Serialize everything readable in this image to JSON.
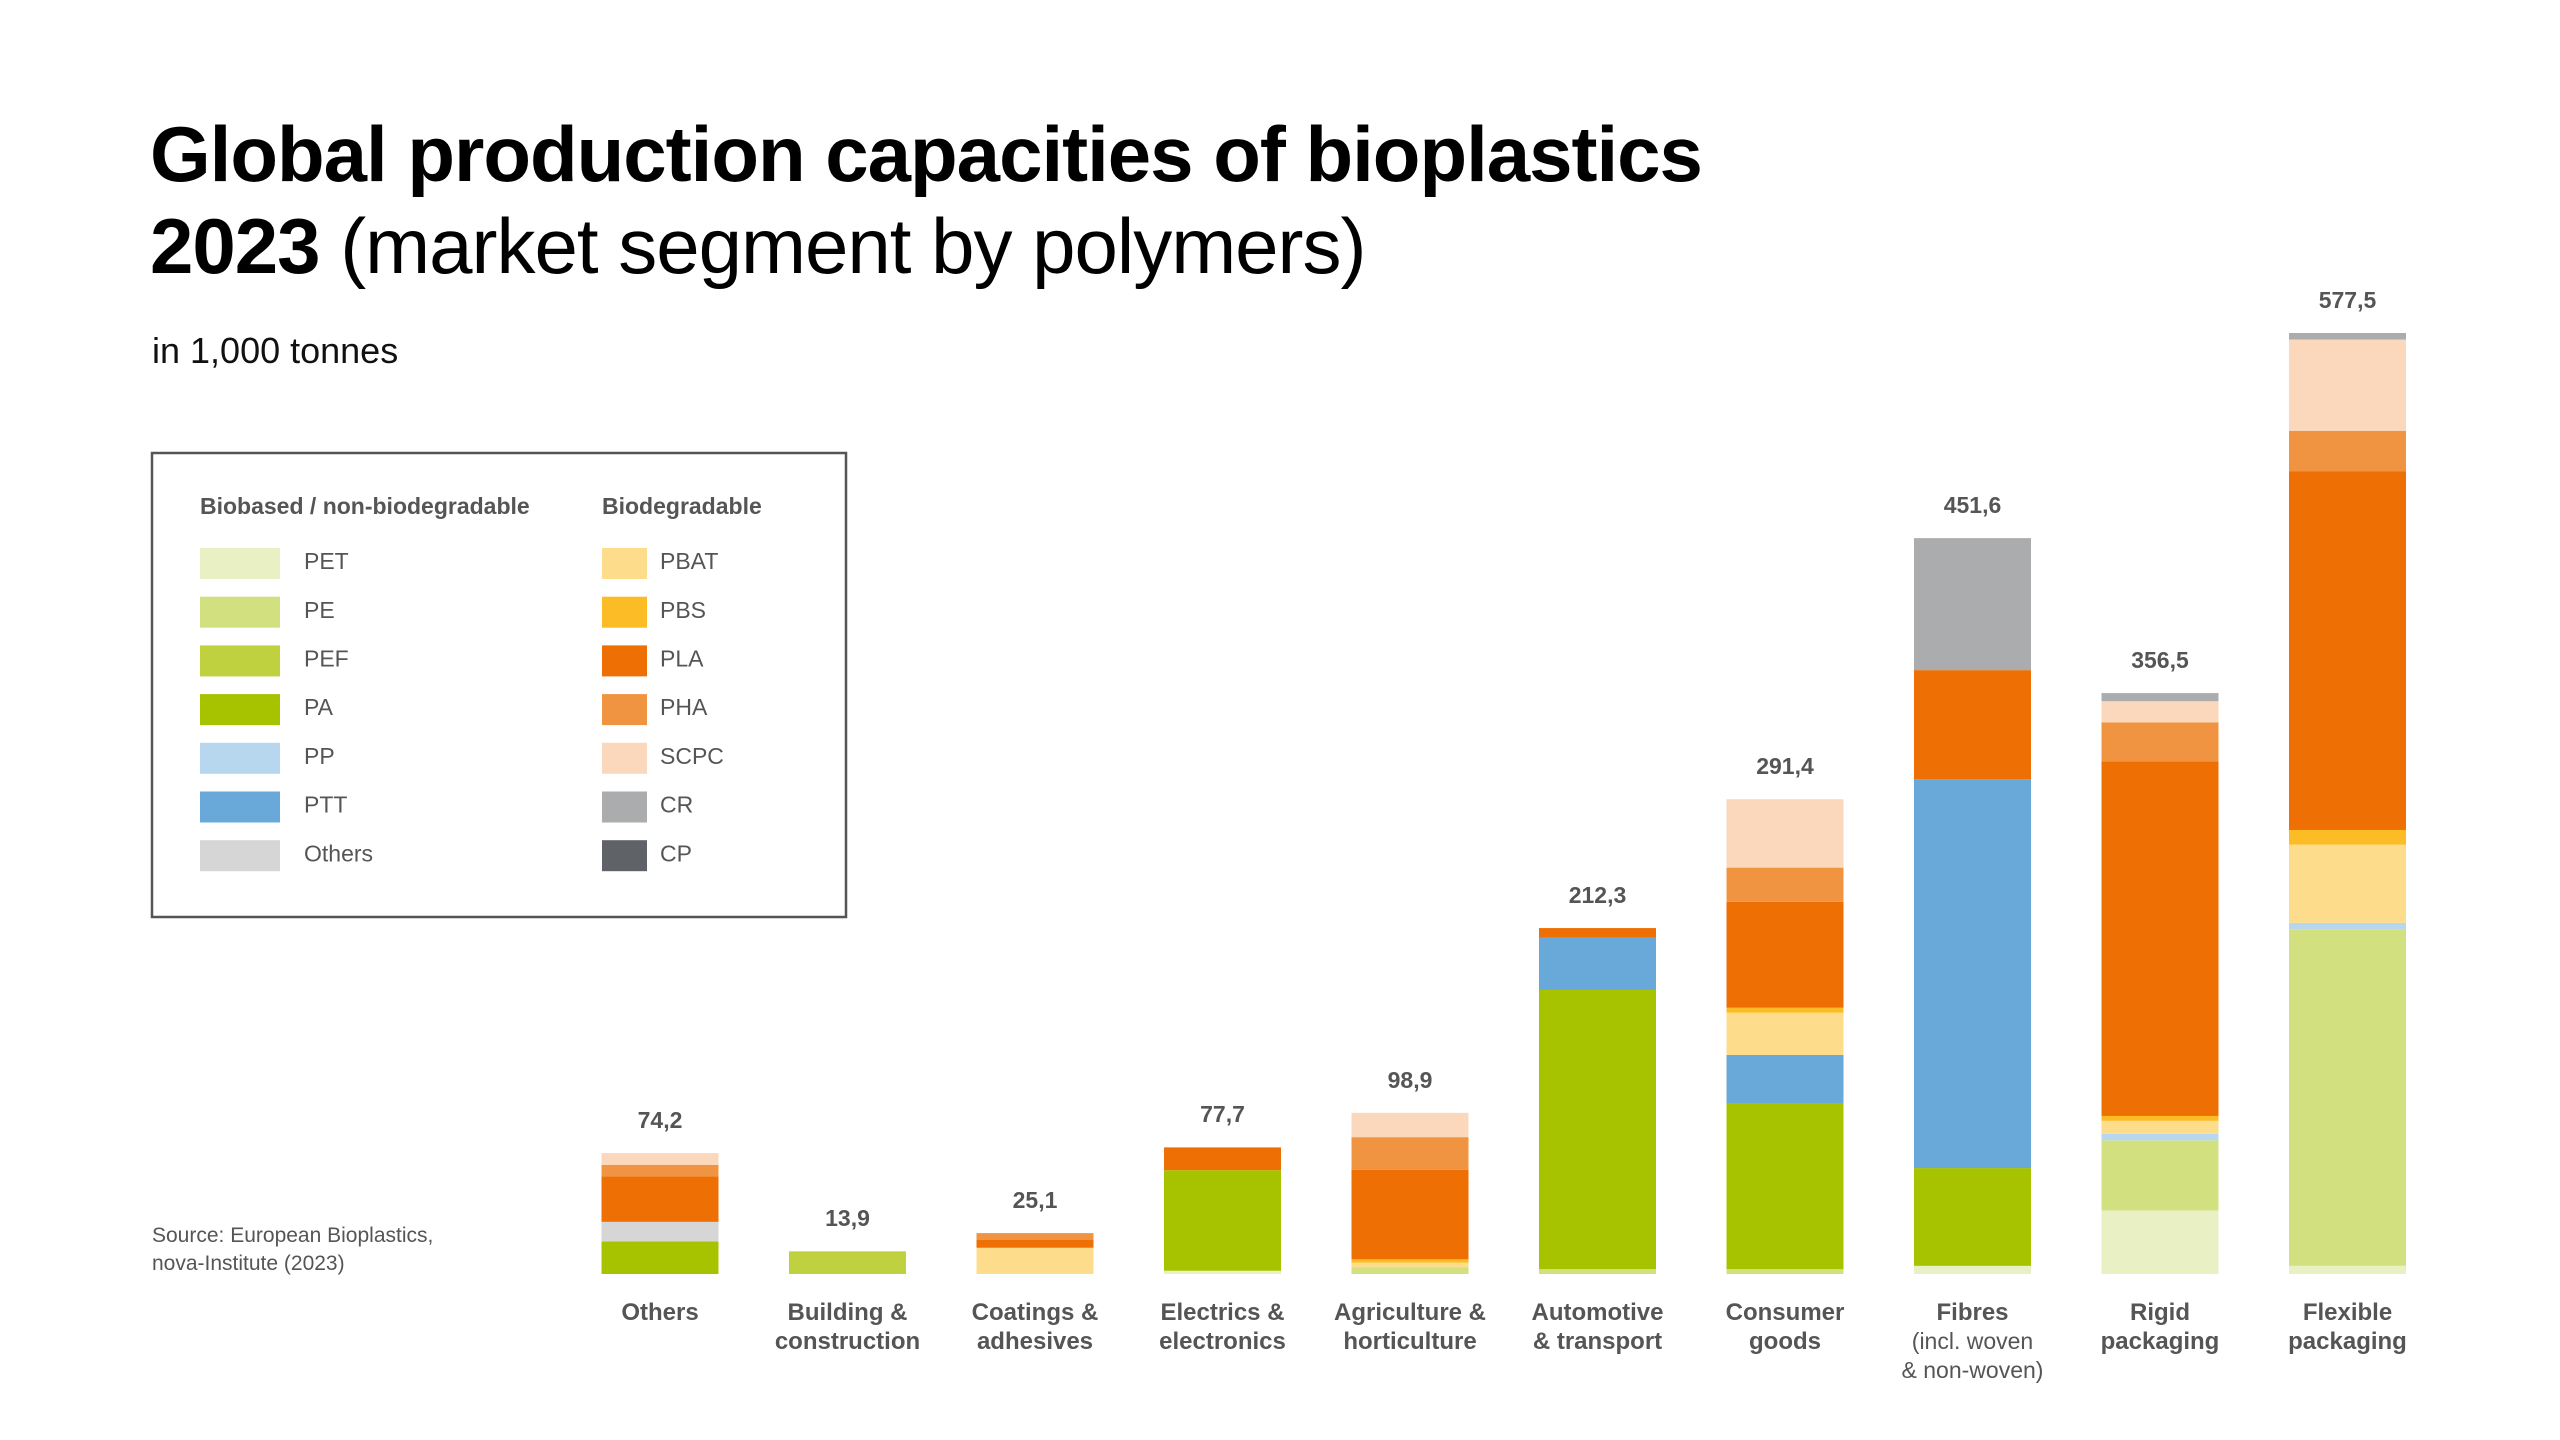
{
  "chart_data": {
    "type": "stacked_bar",
    "title": "Global production capacities of bioplastics\n2023",
    "subtitle": "(market segment by polymers)",
    "unit": "in 1,000 tonnes",
    "source": "Source: European Bioplastics,\nnova-Institute (2023)",
    "categories": [
      "Others",
      "Building &\nconstruction",
      "Coatings &\nadhesives",
      "Electrics &\nelectronics",
      "Agriculture &\nhorticulture",
      "Automotive\n& transport",
      "Consumer\ngoods",
      "Fibres",
      "Rigid\npackaging",
      "Flexible\npackaging"
    ],
    "fibres_note": "(incl. woven\n& non-woven)",
    "legend_groups": [
      "Biobased / non-biodegradable",
      "Biodegradable"
    ],
    "series": [
      {
        "name": "PET",
        "group": 0,
        "color": "#e8f0c4",
        "values": [
          0,
          0,
          0,
          2,
          0,
          0,
          0,
          5,
          39,
          5
        ]
      },
      {
        "name": "PE",
        "group": 0,
        "color": "#d3e07f",
        "values": [
          0,
          0,
          0,
          0,
          4,
          3,
          3,
          0,
          43,
          206.5
        ]
      },
      {
        "name": "PEF",
        "group": 0,
        "color": "#bfd13f",
        "values": [
          0,
          13.9,
          0,
          0,
          0,
          0,
          0,
          0,
          0,
          0
        ]
      },
      {
        "name": "PA",
        "group": 0,
        "color": "#a7c300",
        "values": [
          20,
          0,
          0,
          61.7,
          0,
          171.3,
          101.4,
          60,
          0,
          0
        ]
      },
      {
        "name": "PP",
        "group": 0,
        "color": "#b7d7ee",
        "values": [
          0,
          0,
          0,
          0,
          0,
          0,
          0,
          0,
          4,
          4
        ]
      },
      {
        "name": "PTT",
        "group": 0,
        "color": "#69a9da",
        "values": [
          0,
          0,
          0,
          0,
          0,
          32,
          30,
          238.6,
          0,
          0
        ]
      },
      {
        "name": "Others",
        "group": 0,
        "color": "#d6d6d6",
        "values": [
          12,
          0,
          0,
          0,
          0,
          0,
          0,
          0,
          0,
          0
        ]
      },
      {
        "name": "PBAT",
        "group": 1,
        "color": "#fddd8c",
        "values": [
          0,
          0,
          16.1,
          0,
          3,
          0,
          26,
          0,
          8,
          48
        ]
      },
      {
        "name": "PBS",
        "group": 1,
        "color": "#fcbc26",
        "values": [
          0,
          0,
          0,
          0,
          2,
          0,
          3,
          0,
          3,
          9
        ]
      },
      {
        "name": "PLA",
        "group": 1,
        "color": "#ee6f04",
        "values": [
          28,
          0,
          5,
          14,
          55,
          6,
          65,
          67,
          217.5,
          220
        ]
      },
      {
        "name": "PHA",
        "group": 1,
        "color": "#f19441",
        "values": [
          7,
          0,
          4,
          0,
          20,
          0,
          21,
          0,
          24,
          25
        ]
      },
      {
        "name": "SCPC",
        "group": 1,
        "color": "#fbd8bc",
        "values": [
          7.2,
          0,
          0,
          0,
          14.9,
          0,
          42,
          0,
          13,
          56
        ]
      },
      {
        "name": "CR",
        "group": 1,
        "color": "#aaacad",
        "values": [
          0,
          0,
          0,
          0,
          0,
          0,
          0,
          81,
          5,
          4
        ]
      },
      {
        "name": "CP",
        "group": 1,
        "color": "#5f6266",
        "values": [
          0,
          0,
          0,
          0,
          0,
          0,
          0,
          0,
          0,
          0
        ]
      }
    ],
    "totals": {
      "values": [
        74.2,
        13.9,
        25.1,
        77.7,
        98.9,
        212.3,
        291.4,
        451.6,
        356.5,
        577.5
      ],
      "value_labels": [
        "74,2",
        "13,9",
        "25,1",
        "77,7",
        "98,9",
        "212,3",
        "291,4",
        "451,6",
        "356,5",
        "577,5"
      ]
    }
  }
}
